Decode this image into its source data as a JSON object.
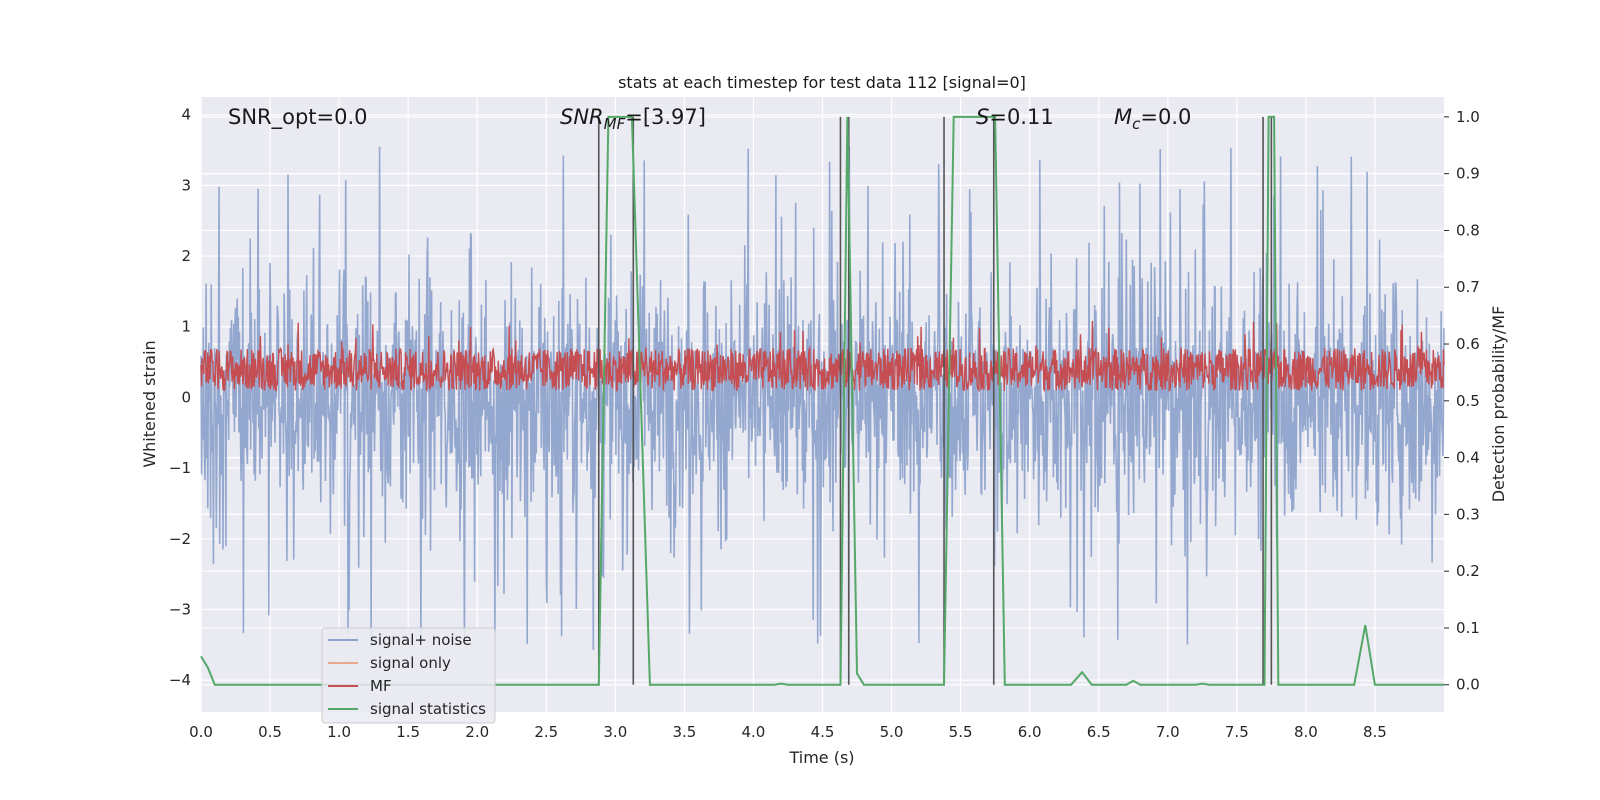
{
  "chart_data": {
    "type": "line",
    "title": "stats at each timestep for test data 112 [signal=0]",
    "xlabel": "Time (s)",
    "ylabel_left": "Whitened strain",
    "ylabel_right": "Detection probability/MF",
    "xlim": [
      0.0,
      9.0
    ],
    "ylim_left": [
      -4.45,
      4.25
    ],
    "ylim_right": [
      -0.048,
      1.035
    ],
    "x_ticks": [
      "0.0",
      "0.5",
      "1.0",
      "1.5",
      "2.0",
      "2.5",
      "3.0",
      "3.5",
      "4.0",
      "4.5",
      "5.0",
      "5.5",
      "6.0",
      "6.5",
      "7.0",
      "7.5",
      "8.0",
      "8.5"
    ],
    "y_ticks_left": [
      "4",
      "3",
      "2",
      "1",
      "0",
      "−1",
      "−2",
      "−3",
      "−4"
    ],
    "y_ticks_right": [
      "1.0",
      "0.9",
      "0.8",
      "0.7",
      "0.6",
      "0.5",
      "0.4",
      "0.3",
      "0.2",
      "0.1",
      "0.0"
    ],
    "grid": true,
    "legend_position": "lower-left",
    "annotations": {
      "snr_opt": "SNR_opt=0.0",
      "snr_mf_sym": "SNR",
      "snr_mf_sub": "MF",
      "snr_mf_val": "=[3.97]",
      "s_sym": "S",
      "s_val": "=0.11",
      "mc_sym": "M",
      "mc_sub": "c",
      "mc_val": "=0.0"
    },
    "series": [
      {
        "name": "signal+ noise",
        "color": "#8fa4cc",
        "axis": "left",
        "description_values": "whitened noise, roughly within ±2, peaks to ±3.6"
      },
      {
        "name": "signal only",
        "color": "#e8a98c",
        "axis": "left",
        "values": []
      },
      {
        "name": "MF",
        "color": "#c44e52",
        "axis": "right",
        "description_values": "fluctuates ~0.52–0.6"
      },
      {
        "name": "signal statistics",
        "color": "#55a868",
        "axis": "right",
        "x": [
          0.0,
          0.05,
          0.1,
          2.88,
          2.95,
          3.05,
          3.12,
          3.25,
          4.15,
          4.2,
          4.25,
          4.63,
          4.68,
          4.75,
          4.8,
          5.38,
          5.45,
          5.75,
          5.82,
          6.3,
          6.38,
          6.45,
          6.7,
          6.75,
          6.8,
          7.2,
          7.25,
          7.3,
          7.7,
          7.73,
          7.77,
          7.8,
          8.35,
          8.43,
          8.5,
          9.0
        ],
        "values": [
          0.05,
          0.03,
          0.0,
          0.0,
          1.0,
          1.0,
          1.0,
          0.0,
          0.0,
          0.002,
          0.0,
          0.0,
          1.0,
          0.02,
          0.0,
          0.0,
          1.0,
          1.0,
          0.0,
          0.0,
          0.022,
          0.0,
          0.0,
          0.007,
          0.0,
          0.0,
          0.002,
          0.0,
          0.0,
          1.0,
          1.0,
          0.0,
          0.0,
          0.105,
          0.0,
          0.0
        ]
      }
    ],
    "vertical_lines_x": [
      2.88,
      3.13,
      4.63,
      4.69,
      5.38,
      5.74,
      7.69,
      7.75
    ],
    "legend": [
      "signal+ noise",
      "signal only",
      "MF",
      "signal statistics"
    ]
  },
  "colors": {
    "plot_bg": "#eaeaf2",
    "grid": "#ffffff",
    "noise": "#8fa4cc",
    "signal_only": "#e8a98c",
    "mf": "#c44e52",
    "stats": "#55a868",
    "vline": "#555555"
  }
}
